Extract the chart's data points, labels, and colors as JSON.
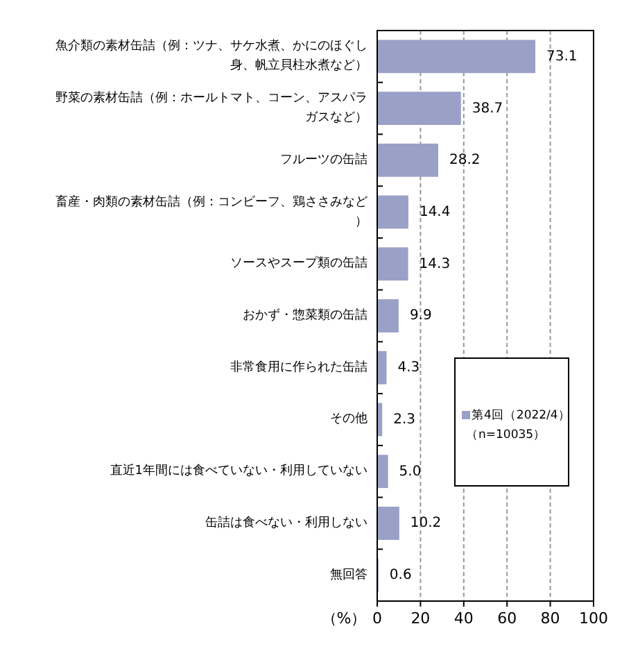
{
  "chart_data": {
    "type": "bar",
    "orientation": "horizontal",
    "categories": [
      "魚介類の素材缶詰（例：ツナ、サケ水煮、かにのほぐし身、帆立貝柱水煮など）",
      "野菜の素材缶詰（例：ホールトマト、コーン、アスパラガスなど）",
      "フルーツの缶詰",
      "畜産・肉類の素材缶詰（例：コンビーフ、鶏ささみなど）",
      "ソースやスープ類の缶詰",
      "おかず・惣菜類の缶詰",
      "非常食用に作られた缶詰",
      "その他",
      "直近1年間には食べていない・利用していない",
      "缶詰は食べない・利用しない",
      "無回答"
    ],
    "series": [
      {
        "name": "第4回（2022/4）",
        "color": "#9aa0c6",
        "values": [
          73.1,
          38.7,
          28.2,
          14.4,
          14.3,
          9.9,
          4.3,
          2.3,
          5.0,
          10.2,
          0.6
        ]
      }
    ],
    "value_labels": [
      "73.1",
      "38.7",
      "28.2",
      "14.4",
      "14.3",
      "9.9",
      "4.3",
      "2.3",
      "5.0",
      "10.2",
      "0.6"
    ],
    "xlabel": "（%）",
    "xlim": [
      0,
      100
    ],
    "xticks": [
      0,
      20,
      40,
      60,
      80,
      100
    ],
    "grid": "x",
    "legend": "right",
    "annotations": [
      "（n=10035）"
    ]
  }
}
